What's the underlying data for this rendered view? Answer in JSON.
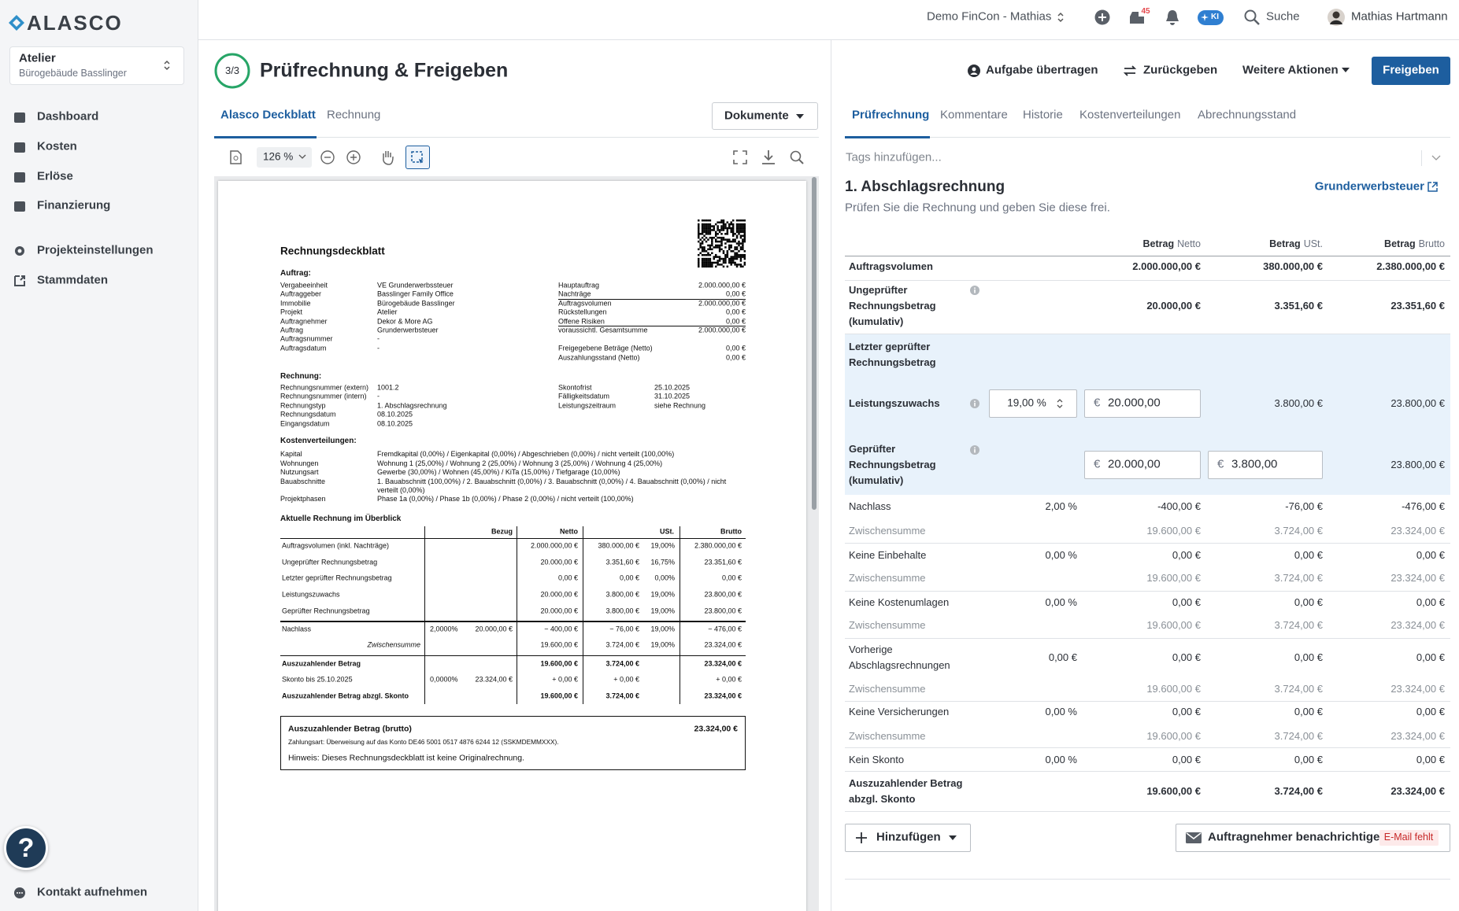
{
  "sidebar": {
    "logo": "ALASCO",
    "project": {
      "name": "Atelier",
      "building": "Bürogebäude Basslinger"
    },
    "nav": [
      "Dashboard",
      "Kosten",
      "Erlöse",
      "Finanzierung"
    ],
    "settings": [
      "Projekteinstellungen",
      "Stammdaten"
    ],
    "help": "?",
    "contact": "Kontakt aufnehmen"
  },
  "topbar": {
    "workspace": "Demo FinCon - Mathias",
    "notifications": "45",
    "ai": "KI",
    "search": "Suche",
    "user": "Mathias Hartmann"
  },
  "header": {
    "step": "3/3",
    "title": "Prüfrechnung & Freigeben",
    "actions": [
      "Aufgabe übertragen",
      "Zurückgeben",
      "Weitere Aktionen"
    ],
    "primary": "Freigeben"
  },
  "left_panel": {
    "tabs": [
      "Alasco Deckblatt",
      "Rechnung"
    ],
    "documents": "Dokumente",
    "zoom": "126 %"
  },
  "document": {
    "title": "Rechnungsdeckblatt",
    "order": {
      "heading": "Auftrag:",
      "left": [
        [
          "Vergabeeinheit",
          "VE Grunderwerbssteuer"
        ],
        [
          "Auftraggeber",
          "Basslinger Family Office"
        ],
        [
          "Immobilie",
          "Bürogebäude Basslinger"
        ],
        [
          "Projekt",
          "Atelier"
        ],
        [
          "Auftragnehmer",
          "Dekor & More AG"
        ],
        [
          "Auftrag",
          "Grunderwerbsteuer"
        ],
        [
          "Auftragsnummer",
          "-"
        ],
        [
          "Auftragsdatum",
          "-"
        ]
      ],
      "right": [
        [
          "Hauptauftrag",
          "2.000.000,00 €"
        ],
        [
          "Nachträge",
          "0,00 €"
        ],
        [
          "Auftragsvolumen",
          "2.000.000,00 €"
        ],
        [
          "Rückstellungen",
          "0,00 €"
        ],
        [
          "Offene Risiken",
          "0,00 €"
        ],
        [
          "voraussichtl. Gesamtsumme",
          "2.000.000,00 €"
        ],
        [
          "Freigegebene Beträge (Netto)",
          "0,00 €"
        ],
        [
          "Auszahlungsstand (Netto)",
          "0,00 €"
        ]
      ]
    },
    "invoice": {
      "heading": "Rechnung:",
      "left": [
        [
          "Rechnungsnummer (extern)",
          "1001.2"
        ],
        [
          "Rechnungsnummer (intern)",
          "-"
        ],
        [
          "Rechnungstyp",
          "1. Abschlagsrechnung"
        ],
        [
          "Rechnungsdatum",
          "08.10.2025"
        ],
        [
          "Eingangsdatum",
          "08.10.2025"
        ]
      ],
      "right": [
        [
          "Skontofrist",
          "25.10.2025"
        ],
        [
          "Fälligkeitsdatum",
          "31.10.2025"
        ],
        [
          "Leistungszeitraum",
          "siehe Rechnung"
        ]
      ]
    },
    "cost_allocations": {
      "heading": "Kostenverteilungen:",
      "rows": [
        [
          "Kapital",
          "Fremdkapital (0,00%) / Eigenkapital (0,00%) / Abgeschrieben (0,00%) / nicht verteilt (100,00%)"
        ],
        [
          "Wohnungen",
          "Wohnung 1 (25,00%) / Wohnung 2 (25,00%) / Wohnung 3 (25,00%) / Wohnung 4 (25,00%)"
        ],
        [
          "Nutzungsart",
          "Gewerbe (30,00%) / Wohnen (45,00%) / KiTa (15,00%) / Tiefgarage (10,00%)"
        ],
        [
          "Bauabschnitte",
          "1. Bauabschnitt (100,00%) / 2. Bauabschnitt (0,00%) / 3. Bauabschnitt (0,00%) / 4. Bauabschnitt (0,00%) / nicht verteilt (0,00%)"
        ],
        [
          "Projektphasen",
          "Phase 1a (0,00%) / Phase 1b (0,00%) / Phase 2 (0,00%) / nicht verteilt (100,00%)"
        ]
      ]
    },
    "overview": {
      "heading": "Aktuelle Rechnung im Überblick",
      "columns": [
        "Bezug",
        "Netto",
        "USt.",
        "Brutto"
      ],
      "rows": [
        [
          "Auftragsvolumen (inkl. Nachträge)",
          null,
          null,
          "2.000.000,00 €",
          "380.000,00 €",
          "19,00%",
          "2.380.000,00 €"
        ],
        [
          "Ungeprüfter Rechnungsbetrag",
          null,
          null,
          "20.000,00 €",
          "3.351,60 €",
          "16,75%",
          "23.351,60 €"
        ],
        [
          "Letzter geprüfter Rechnungsbetrag",
          null,
          null,
          "0,00 €",
          "0,00 €",
          "0,00%",
          "0,00 €"
        ],
        [
          "Leistungszuwachs",
          null,
          null,
          "20.000,00 €",
          "3.800,00 €",
          "19,00%",
          "23.800,00 €"
        ],
        [
          "Geprüfter Rechnungsbetrag",
          null,
          null,
          "20.000,00 €",
          "3.800,00 €",
          "19,00%",
          "23.800,00 €"
        ],
        [
          "Nachlass",
          "2,0000%",
          "20.000,00 €",
          "− 400,00 €",
          "− 76,00 €",
          "19,00%",
          "− 476,00 €"
        ],
        [
          "Zwischensumme",
          null,
          null,
          "19.600,00 €",
          "3.724,00 €",
          "19,00%",
          "23.324,00 €"
        ],
        [
          "Auszuzahlender Betrag",
          null,
          null,
          "19.600,00 €",
          "3.724,00 €",
          null,
          "23.324,00 €"
        ],
        [
          "Skonto bis 25.10.2025",
          "0,0000%",
          "23.324,00 €",
          "+ 0,00 €",
          "+ 0,00 €",
          null,
          "+ 0,00 €"
        ],
        [
          "Auszuzahlender Betrag abzgl. Skonto",
          null,
          null,
          "19.600,00 €",
          "3.724,00 €",
          null,
          "23.324,00 €"
        ]
      ]
    },
    "summary": {
      "label": "Auszuzahlender Betrag (brutto)",
      "amount": "23.324,00 €",
      "payment": "Zahlungsart: Überweisung auf das Konto DE46 5001 0517 4876 6244 12 (SSKMDEMMXXX).",
      "note": "Hinweis: Dieses Rechnungsdeckblatt ist keine Originalrechnung."
    }
  },
  "right_panel": {
    "tabs": [
      "Prüfrechnung",
      "Kommentare",
      "Historie",
      "Kostenverteilungen",
      "Abrechnungsstand"
    ],
    "tags_placeholder": "Tags hinzufügen...",
    "heading": "1. Abschlagsrechnung",
    "link": "Grunderwerbsteuer",
    "instruction": "Prüfen Sie die Rechnung und geben Sie diese frei.",
    "currency": "€",
    "columns": [
      {
        "label": "Betrag",
        "sub": "Netto"
      },
      {
        "label": "Betrag",
        "sub": "USt."
      },
      {
        "label": "Betrag",
        "sub": "Brutto"
      }
    ],
    "rows": [
      {
        "label": "Auftragsvolumen",
        "net": "2.000.000,00 €",
        "vat": "380.000,00 €",
        "gross": "2.380.000,00 €"
      },
      {
        "label": "Ungeprüfter Rechnungsbetrag (kumulativ)",
        "info": true,
        "net": "20.000,00 €",
        "vat": "3.351,60 €",
        "gross": "23.351,60 €"
      },
      {
        "label": "Letzter geprüfter Rechnungsbetrag"
      },
      {
        "label": "Leistungszuwachs",
        "info": true,
        "rate_input": "19,00 %",
        "net_input": "20.000,00",
        "vat": "3.800,00 €",
        "gross": "23.800,00 €"
      },
      {
        "label": "Geprüfter Rechnungsbetrag (kumulativ)",
        "info": true,
        "net_input": "20.000,00",
        "vat_input": "3.800,00",
        "gross": "23.800,00 €"
      },
      {
        "label": "Nachlass",
        "rate": "2,00 %",
        "net": "-400,00 €",
        "vat": "-76,00 €",
        "gross": "-476,00 €"
      },
      {
        "label": "Zwischensumme",
        "net": "19.600,00 €",
        "vat": "3.724,00 €",
        "gross": "23.324,00 €"
      },
      {
        "label": "Keine Einbehalte",
        "rate": "0,00 %",
        "net": "0,00 €",
        "vat": "0,00 €",
        "gross": "0,00 €"
      },
      {
        "label": "Zwischensumme",
        "net": "19.600,00 €",
        "vat": "3.724,00 €",
        "gross": "23.324,00 €"
      },
      {
        "label": "Keine Kostenumlagen",
        "rate": "0,00 %",
        "net": "0,00 €",
        "vat": "0,00 €",
        "gross": "0,00 €"
      },
      {
        "label": "Zwischensumme",
        "net": "19.600,00 €",
        "vat": "3.724,00 €",
        "gross": "23.324,00 €"
      },
      {
        "label": "Vorherige Abschlagsrechnungen",
        "rate": "0,00 €",
        "net": "0,00 €",
        "vat": "0,00 €",
        "gross": "0,00 €"
      },
      {
        "label": "Zwischensumme",
        "net": "19.600,00 €",
        "vat": "3.724,00 €",
        "gross": "23.324,00 €"
      },
      {
        "label": "Keine Versicherungen",
        "rate": "0,00 %",
        "net": "0,00 €",
        "vat": "0,00 €",
        "gross": "0,00 €"
      },
      {
        "label": "Zwischensumme",
        "net": "19.600,00 €",
        "vat": "3.724,00 €",
        "gross": "23.324,00 €"
      },
      {
        "label": "Kein Skonto",
        "rate": "0,00 %",
        "net": "0,00 €",
        "vat": "0,00 €",
        "gross": "0,00 €"
      },
      {
        "label": "Auszuzahlender Betrag abzgl. Skonto",
        "net": "19.600,00 €",
        "vat": "3.724,00 €",
        "gross": "23.324,00 €"
      }
    ],
    "add_button": "Hinzufügen",
    "notify_button": "Auftragnehmer benachrichtigen",
    "notify_badge": "E-Mail fehlt"
  }
}
